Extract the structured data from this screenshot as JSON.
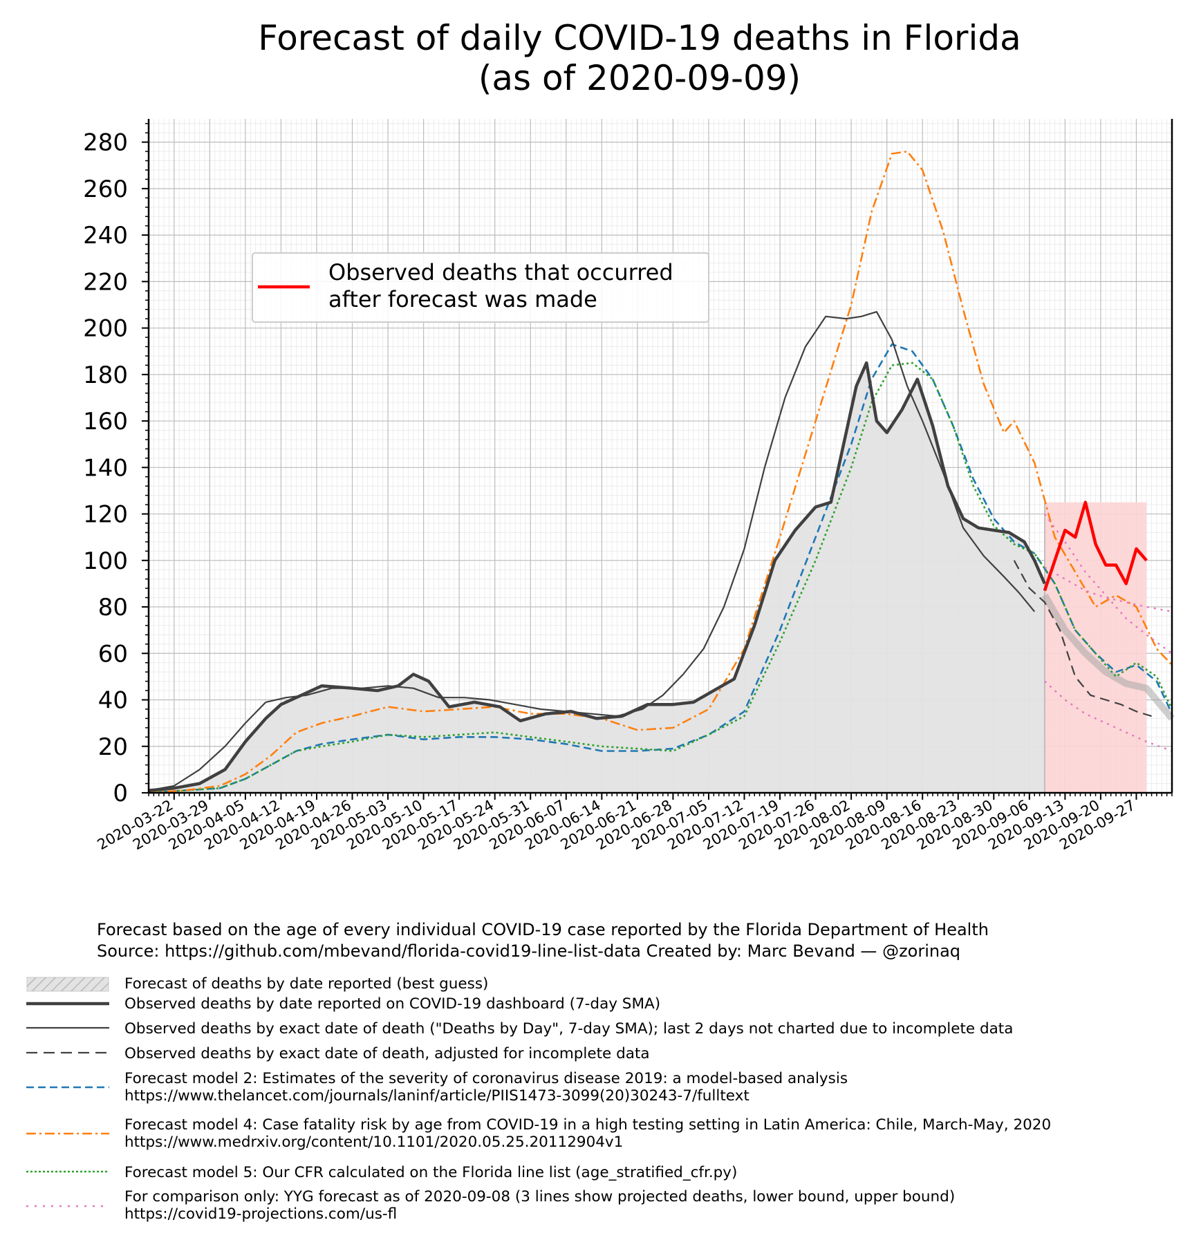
{
  "title_line1": "Forecast of daily COVID-19 deaths in Florida",
  "title_line2": "(as of 2020-09-09)",
  "inset_legend": {
    "label_line1": "Observed deaths that occurred",
    "label_line2": "after forecast was made",
    "color": "#ff0000"
  },
  "footer": {
    "line1": "Forecast based on the age of every individual COVID-19 case reported by the Florida Department of Health",
    "line2": "Source: https://github.com/mbevand/florida-covid19-line-list-data     Created by: Marc Bevand — @zorinaq"
  },
  "legend": [
    {
      "id": "band",
      "line1": "Forecast of deaths by date reported (best guess)",
      "line2": ""
    },
    {
      "id": "dashboard",
      "line1": "Observed deaths by date reported on COVID-19 dashboard (7-day SMA)",
      "line2": ""
    },
    {
      "id": "exact",
      "line1": "Observed deaths by exact date of death (\"Deaths by Day\", 7-day SMA); last 2 days not charted due to incomplete data",
      "line2": ""
    },
    {
      "id": "adjusted",
      "line1": "Observed deaths by exact date of death, adjusted for incomplete data",
      "line2": ""
    },
    {
      "id": "model2",
      "line1": "Forecast model 2: Estimates of the severity of coronavirus disease 2019: a model-based analysis",
      "line2": "https://www.thelancet.com/journals/laninf/article/PIIS1473-3099(20)30243-7/fulltext"
    },
    {
      "id": "model4",
      "line1": "Forecast model 4: Case fatality risk by age from COVID-19 in a high testing setting in Latin America: Chile, March-May, 2020",
      "line2": "https://www.medrxiv.org/content/10.1101/2020.05.25.20112904v1"
    },
    {
      "id": "model5",
      "line1": "Forecast model 5: Our CFR calculated on the Florida line list (age_stratified_cfr.py)",
      "line2": ""
    },
    {
      "id": "yyg",
      "line1": "For comparison only: YYG forecast as of 2020-09-08 (3 lines show projected deaths, lower bound, upper bound)",
      "line2": "https://covid19-projections.com/us-fl"
    }
  ],
  "chart_data": {
    "type": "line",
    "title": "Forecast of daily COVID-19 deaths in Florida (as of 2020-09-09)",
    "xlabel": "",
    "ylabel": "",
    "x_type": "date",
    "xlim": [
      "2020-03-17",
      "2020-10-04"
    ],
    "ylim": [
      0,
      290
    ],
    "yticks": [
      0,
      20,
      40,
      60,
      80,
      100,
      120,
      140,
      160,
      180,
      200,
      220,
      240,
      260,
      280
    ],
    "xticks": [
      "2020-03-22",
      "2020-03-29",
      "2020-04-05",
      "2020-04-12",
      "2020-04-19",
      "2020-04-26",
      "2020-05-03",
      "2020-05-10",
      "2020-05-17",
      "2020-05-24",
      "2020-05-31",
      "2020-06-07",
      "2020-06-14",
      "2020-06-21",
      "2020-06-28",
      "2020-07-05",
      "2020-07-12",
      "2020-07-19",
      "2020-07-26",
      "2020-08-02",
      "2020-08-09",
      "2020-08-16",
      "2020-08-23",
      "2020-08-30",
      "2020-09-06",
      "2020-09-13",
      "2020-09-20",
      "2020-09-27"
    ],
    "grid": true,
    "legend_position": "upper left",
    "shaded_regions": [
      {
        "name": "Forecast of deaths by date reported (best guess)",
        "from": "2020-03-17",
        "to": "2020-09-09",
        "color": "#e3e3e3"
      },
      {
        "name": "Observed deaths that occurred after forecast was made",
        "from": "2020-09-09",
        "to": "2020-09-29",
        "color": "#fdd4d4"
      }
    ],
    "series": [
      {
        "name": "Observed deaths by date reported on COVID-19 dashboard (7-day SMA)",
        "color": "#404040",
        "dash": "",
        "width": 4.5,
        "x": [
          "2020-03-17",
          "2020-03-22",
          "2020-03-27",
          "2020-04-01",
          "2020-04-05",
          "2020-04-09",
          "2020-04-12",
          "2020-04-16",
          "2020-04-20",
          "2020-04-26",
          "2020-05-01",
          "2020-05-05",
          "2020-05-08",
          "2020-05-11",
          "2020-05-15",
          "2020-05-20",
          "2020-05-25",
          "2020-05-29",
          "2020-06-03",
          "2020-06-08",
          "2020-06-13",
          "2020-06-18",
          "2020-06-23",
          "2020-06-28",
          "2020-07-02",
          "2020-07-06",
          "2020-07-10",
          "2020-07-14",
          "2020-07-18",
          "2020-07-22",
          "2020-07-26",
          "2020-07-29",
          "2020-08-01",
          "2020-08-03",
          "2020-08-05",
          "2020-08-07",
          "2020-08-09",
          "2020-08-12",
          "2020-08-15",
          "2020-08-18",
          "2020-08-21",
          "2020-08-24",
          "2020-08-27",
          "2020-08-30",
          "2020-09-02",
          "2020-09-05",
          "2020-09-07",
          "2020-09-09"
        ],
        "y": [
          1,
          2,
          4,
          10,
          22,
          32,
          38,
          42,
          46,
          45,
          44,
          46,
          51,
          48,
          37,
          39,
          37,
          31,
          34,
          35,
          32,
          33,
          38,
          38,
          39,
          44,
          49,
          72,
          100,
          113,
          123,
          125,
          155,
          175,
          185,
          160,
          155,
          165,
          178,
          158,
          132,
          118,
          114,
          113,
          112,
          108,
          100,
          90
        ]
      },
      {
        "name": "Observed deaths by exact date of death (\"Deaths by Day\", 7-day SMA); last 2 days not charted due to incomplete data",
        "color": "#404040",
        "dash": "",
        "width": 2.2,
        "x": [
          "2020-03-17",
          "2020-03-22",
          "2020-03-27",
          "2020-04-01",
          "2020-04-05",
          "2020-04-09",
          "2020-04-13",
          "2020-04-17",
          "2020-04-22",
          "2020-04-28",
          "2020-05-03",
          "2020-05-08",
          "2020-05-13",
          "2020-05-18",
          "2020-05-23",
          "2020-05-28",
          "2020-06-02",
          "2020-06-07",
          "2020-06-12",
          "2020-06-17",
          "2020-06-22",
          "2020-06-26",
          "2020-06-30",
          "2020-07-04",
          "2020-07-08",
          "2020-07-12",
          "2020-07-16",
          "2020-07-20",
          "2020-07-24",
          "2020-07-28",
          "2020-08-01",
          "2020-08-04",
          "2020-08-07",
          "2020-08-10",
          "2020-08-13",
          "2020-08-16",
          "2020-08-20",
          "2020-08-24",
          "2020-08-28",
          "2020-09-01",
          "2020-09-04",
          "2020-09-07"
        ],
        "y": [
          1,
          3,
          10,
          20,
          30,
          39,
          41,
          42,
          45,
          45,
          46,
          45,
          41,
          41,
          40,
          38,
          36,
          35,
          34,
          33,
          36,
          42,
          51,
          62,
          80,
          105,
          140,
          170,
          192,
          205,
          204,
          205,
          207,
          195,
          175,
          160,
          138,
          114,
          102,
          93,
          86,
          78
        ]
      },
      {
        "name": "Observed deaths by exact date of death, adjusted for incomplete data",
        "color": "#404040",
        "dash": "14 8",
        "width": 2.2,
        "x": [
          "2020-09-03",
          "2020-09-06",
          "2020-09-09",
          "2020-09-12",
          "2020-09-15",
          "2020-09-18",
          "2020-09-21",
          "2020-09-24",
          "2020-09-27",
          "2020-09-30"
        ],
        "y": [
          100,
          88,
          82,
          70,
          50,
          42,
          40,
          38,
          35,
          33
        ]
      },
      {
        "name": "Forecast model 2: Estimates of the severity of coronavirus disease 2019: a model-based analysis",
        "color": "#1f77b4",
        "dash": "11 6",
        "width": 2.6,
        "x": [
          "2020-03-17",
          "2020-03-24",
          "2020-03-31",
          "2020-04-05",
          "2020-04-10",
          "2020-04-15",
          "2020-04-20",
          "2020-04-26",
          "2020-05-03",
          "2020-05-10",
          "2020-05-17",
          "2020-05-24",
          "2020-05-31",
          "2020-06-07",
          "2020-06-14",
          "2020-06-21",
          "2020-06-28",
          "2020-07-05",
          "2020-07-12",
          "2020-07-19",
          "2020-07-26",
          "2020-08-02",
          "2020-08-06",
          "2020-08-10",
          "2020-08-14",
          "2020-08-18",
          "2020-08-22",
          "2020-08-26",
          "2020-08-30",
          "2020-09-03",
          "2020-09-07",
          "2020-09-11",
          "2020-09-15",
          "2020-09-19",
          "2020-09-23",
          "2020-09-27",
          "2020-10-01",
          "2020-10-04"
        ],
        "y": [
          0,
          1,
          2,
          6,
          12,
          18,
          21,
          23,
          25,
          23,
          24,
          24,
          23,
          21,
          18,
          18,
          19,
          25,
          35,
          70,
          110,
          150,
          178,
          193,
          190,
          178,
          158,
          135,
          118,
          108,
          103,
          90,
          70,
          60,
          52,
          55,
          48,
          34
        ]
      },
      {
        "name": "Forecast model 4: Case fatality risk by age from COVID-19 in a high testing setting in Latin America: Chile, March-May, 2020",
        "color": "#ff7f0e",
        "dash": "14 5 3 5",
        "width": 2.6,
        "x": [
          "2020-03-17",
          "2020-03-24",
          "2020-03-31",
          "2020-04-05",
          "2020-04-10",
          "2020-04-15",
          "2020-04-20",
          "2020-04-26",
          "2020-05-03",
          "2020-05-10",
          "2020-05-17",
          "2020-05-24",
          "2020-05-31",
          "2020-06-07",
          "2020-06-14",
          "2020-06-21",
          "2020-06-28",
          "2020-07-05",
          "2020-07-12",
          "2020-07-19",
          "2020-07-26",
          "2020-08-02",
          "2020-08-06",
          "2020-08-10",
          "2020-08-13",
          "2020-08-16",
          "2020-08-20",
          "2020-08-24",
          "2020-08-28",
          "2020-09-01",
          "2020-09-03",
          "2020-09-07",
          "2020-09-11",
          "2020-09-15",
          "2020-09-19",
          "2020-09-23",
          "2020-09-27",
          "2020-10-01",
          "2020-10-04"
        ],
        "y": [
          0,
          1,
          3,
          8,
          16,
          26,
          30,
          33,
          37,
          35,
          36,
          37,
          34,
          34,
          32,
          27,
          28,
          36,
          62,
          110,
          160,
          210,
          250,
          275,
          276,
          268,
          242,
          208,
          176,
          155,
          160,
          142,
          110,
          95,
          80,
          85,
          80,
          62,
          55
        ]
      },
      {
        "name": "Forecast model 5: Our CFR calculated on the Florida line list (age_stratified_cfr.py)",
        "color": "#2ca02c",
        "dash": "3 4",
        "width": 2.6,
        "x": [
          "2020-03-17",
          "2020-03-24",
          "2020-03-31",
          "2020-04-05",
          "2020-04-10",
          "2020-04-15",
          "2020-04-20",
          "2020-04-26",
          "2020-05-03",
          "2020-05-10",
          "2020-05-17",
          "2020-05-24",
          "2020-05-31",
          "2020-06-07",
          "2020-06-14",
          "2020-06-21",
          "2020-06-28",
          "2020-07-05",
          "2020-07-12",
          "2020-07-19",
          "2020-07-26",
          "2020-08-02",
          "2020-08-06",
          "2020-08-10",
          "2020-08-14",
          "2020-08-18",
          "2020-08-22",
          "2020-08-26",
          "2020-08-30",
          "2020-09-03",
          "2020-09-07",
          "2020-09-11",
          "2020-09-15",
          "2020-09-19",
          "2020-09-23",
          "2020-09-27",
          "2020-10-01",
          "2020-10-04"
        ],
        "y": [
          0,
          1,
          2,
          6,
          12,
          18,
          20,
          22,
          25,
          24,
          25,
          26,
          24,
          22,
          20,
          19,
          18,
          25,
          33,
          65,
          100,
          140,
          168,
          184,
          185,
          178,
          158,
          132,
          115,
          107,
          103,
          90,
          70,
          60,
          50,
          56,
          50,
          36
        ]
      },
      {
        "name": "YYG projected deaths",
        "color": "#e377c2",
        "dash": "3 7",
        "width": 2.4,
        "x": [
          "2020-09-09",
          "2020-09-13",
          "2020-09-17",
          "2020-09-21",
          "2020-09-25",
          "2020-09-29",
          "2020-10-04"
        ],
        "y": [
          97,
          92,
          87,
          84,
          82,
          80,
          78
        ]
      },
      {
        "name": "YYG lower bound",
        "color": "#e377c2",
        "dash": "3 7",
        "width": 2.4,
        "x": [
          "2020-09-09",
          "2020-09-13",
          "2020-09-17",
          "2020-09-21",
          "2020-09-25",
          "2020-09-29",
          "2020-10-04"
        ],
        "y": [
          48,
          40,
          34,
          30,
          26,
          22,
          18
        ]
      },
      {
        "name": "YYG upper bound",
        "color": "#e377c2",
        "dash": "3 7",
        "width": 2.4,
        "x": [
          "2020-09-09",
          "2020-09-13",
          "2020-09-17",
          "2020-09-21",
          "2020-09-25",
          "2020-09-29",
          "2020-10-04"
        ],
        "y": [
          120,
          108,
          95,
          85,
          75,
          68,
          60
        ]
      },
      {
        "name": "Observed deaths that occurred after forecast was made",
        "color": "#ff0000",
        "dash": "",
        "width": 4.5,
        "x": [
          "2020-09-09",
          "2020-09-11",
          "2020-09-13",
          "2020-09-15",
          "2020-09-17",
          "2020-09-19",
          "2020-09-21",
          "2020-09-23",
          "2020-09-25",
          "2020-09-27",
          "2020-09-29"
        ],
        "y": [
          87,
          100,
          113,
          110,
          125,
          107,
          98,
          98,
          90,
          105,
          100
        ]
      },
      {
        "name": "Forecast of deaths by date reported (best guess)",
        "color": "#a8a8a8",
        "dash": "",
        "width": 10,
        "x": [
          "2020-09-09",
          "2020-09-13",
          "2020-09-17",
          "2020-09-21",
          "2020-09-25",
          "2020-09-29",
          "2020-10-04"
        ],
        "y": [
          85,
          70,
          60,
          52,
          47,
          45,
          32
        ]
      }
    ]
  }
}
